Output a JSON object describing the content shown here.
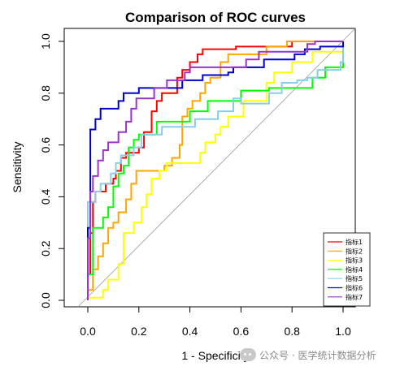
{
  "chart_data": {
    "type": "line",
    "title": "Comparison of ROC curves",
    "xlabel": "1 - Specificity",
    "ylabel": "Sensitivity",
    "xlim": [
      0,
      1
    ],
    "ylim": [
      0,
      1
    ],
    "xticks": [
      "0.0",
      "0.2",
      "0.4",
      "0.6",
      "0.8",
      "1.0"
    ],
    "yticks": [
      "0.0",
      "0.2",
      "0.4",
      "0.6",
      "0.8",
      "1.0"
    ],
    "grid": false,
    "diagonal_reference": true,
    "legend_position": "bottom-right",
    "series": [
      {
        "name": "指标1",
        "color": "#ff0000",
        "points": [
          [
            0,
            0
          ],
          [
            0,
            0.1
          ],
          [
            0.01,
            0.1
          ],
          [
            0.01,
            0.26
          ],
          [
            0.02,
            0.26
          ],
          [
            0.02,
            0.38
          ],
          [
            0.03,
            0.38
          ],
          [
            0.03,
            0.42
          ],
          [
            0.07,
            0.42
          ],
          [
            0.07,
            0.45
          ],
          [
            0.1,
            0.45
          ],
          [
            0.1,
            0.47
          ],
          [
            0.11,
            0.47
          ],
          [
            0.11,
            0.5
          ],
          [
            0.13,
            0.5
          ],
          [
            0.13,
            0.55
          ],
          [
            0.15,
            0.55
          ],
          [
            0.15,
            0.57
          ],
          [
            0.2,
            0.57
          ],
          [
            0.2,
            0.59
          ],
          [
            0.22,
            0.59
          ],
          [
            0.22,
            0.65
          ],
          [
            0.25,
            0.65
          ],
          [
            0.25,
            0.73
          ],
          [
            0.27,
            0.73
          ],
          [
            0.27,
            0.77
          ],
          [
            0.29,
            0.77
          ],
          [
            0.29,
            0.8
          ],
          [
            0.35,
            0.8
          ],
          [
            0.35,
            0.86
          ],
          [
            0.37,
            0.86
          ],
          [
            0.37,
            0.89
          ],
          [
            0.4,
            0.89
          ],
          [
            0.4,
            0.92
          ],
          [
            0.43,
            0.92
          ],
          [
            0.43,
            0.95
          ],
          [
            0.45,
            0.95
          ],
          [
            0.45,
            0.97
          ],
          [
            0.58,
            0.97
          ],
          [
            0.58,
            0.98
          ],
          [
            0.8,
            0.98
          ],
          [
            0.8,
            1
          ],
          [
            1,
            1
          ]
        ]
      },
      {
        "name": "指标2",
        "color": "#ffa500",
        "points": [
          [
            0,
            0
          ],
          [
            0,
            0.04
          ],
          [
            0.02,
            0.04
          ],
          [
            0.02,
            0.12
          ],
          [
            0.04,
            0.12
          ],
          [
            0.04,
            0.17
          ],
          [
            0.06,
            0.17
          ],
          [
            0.06,
            0.22
          ],
          [
            0.08,
            0.22
          ],
          [
            0.08,
            0.28
          ],
          [
            0.1,
            0.28
          ],
          [
            0.1,
            0.3
          ],
          [
            0.12,
            0.3
          ],
          [
            0.12,
            0.34
          ],
          [
            0.15,
            0.34
          ],
          [
            0.15,
            0.39
          ],
          [
            0.17,
            0.39
          ],
          [
            0.17,
            0.45
          ],
          [
            0.19,
            0.45
          ],
          [
            0.19,
            0.5
          ],
          [
            0.3,
            0.5
          ],
          [
            0.3,
            0.52
          ],
          [
            0.33,
            0.52
          ],
          [
            0.33,
            0.55
          ],
          [
            0.36,
            0.55
          ],
          [
            0.36,
            0.6
          ],
          [
            0.37,
            0.6
          ],
          [
            0.37,
            0.71
          ],
          [
            0.39,
            0.71
          ],
          [
            0.39,
            0.74
          ],
          [
            0.41,
            0.74
          ],
          [
            0.41,
            0.77
          ],
          [
            0.44,
            0.77
          ],
          [
            0.44,
            0.8
          ],
          [
            0.46,
            0.8
          ],
          [
            0.46,
            0.84
          ],
          [
            0.48,
            0.84
          ],
          [
            0.48,
            0.86
          ],
          [
            0.52,
            0.86
          ],
          [
            0.52,
            0.92
          ],
          [
            0.55,
            0.92
          ],
          [
            0.55,
            0.95
          ],
          [
            0.7,
            0.95
          ],
          [
            0.7,
            0.98
          ],
          [
            0.78,
            0.98
          ],
          [
            0.78,
            1
          ],
          [
            1,
            1
          ]
        ]
      },
      {
        "name": "指标3",
        "color": "#ffff00",
        "points": [
          [
            0,
            0
          ],
          [
            0,
            0.01
          ],
          [
            0.06,
            0.01
          ],
          [
            0.06,
            0.04
          ],
          [
            0.08,
            0.04
          ],
          [
            0.08,
            0.08
          ],
          [
            0.12,
            0.08
          ],
          [
            0.12,
            0.14
          ],
          [
            0.14,
            0.14
          ],
          [
            0.14,
            0.26
          ],
          [
            0.18,
            0.26
          ],
          [
            0.18,
            0.3
          ],
          [
            0.21,
            0.3
          ],
          [
            0.21,
            0.36
          ],
          [
            0.23,
            0.36
          ],
          [
            0.23,
            0.41
          ],
          [
            0.25,
            0.41
          ],
          [
            0.25,
            0.47
          ],
          [
            0.28,
            0.47
          ],
          [
            0.28,
            0.5
          ],
          [
            0.31,
            0.5
          ],
          [
            0.31,
            0.53
          ],
          [
            0.44,
            0.53
          ],
          [
            0.44,
            0.57
          ],
          [
            0.46,
            0.57
          ],
          [
            0.46,
            0.61
          ],
          [
            0.5,
            0.61
          ],
          [
            0.5,
            0.64
          ],
          [
            0.52,
            0.64
          ],
          [
            0.52,
            0.67
          ],
          [
            0.55,
            0.67
          ],
          [
            0.55,
            0.71
          ],
          [
            0.61,
            0.71
          ],
          [
            0.61,
            0.77
          ],
          [
            0.7,
            0.77
          ],
          [
            0.7,
            0.84
          ],
          [
            0.73,
            0.84
          ],
          [
            0.73,
            0.88
          ],
          [
            0.8,
            0.88
          ],
          [
            0.8,
            0.92
          ],
          [
            0.88,
            0.92
          ],
          [
            0.88,
            0.96
          ],
          [
            1,
            0.96
          ],
          [
            1,
            1
          ]
        ]
      },
      {
        "name": "指标4",
        "color": "#00ff00",
        "points": [
          [
            0,
            0
          ],
          [
            0,
            0.1
          ],
          [
            0.02,
            0.1
          ],
          [
            0.02,
            0.28
          ],
          [
            0.06,
            0.28
          ],
          [
            0.06,
            0.32
          ],
          [
            0.08,
            0.32
          ],
          [
            0.08,
            0.36
          ],
          [
            0.1,
            0.36
          ],
          [
            0.1,
            0.44
          ],
          [
            0.12,
            0.44
          ],
          [
            0.12,
            0.49
          ],
          [
            0.14,
            0.49
          ],
          [
            0.14,
            0.52
          ],
          [
            0.16,
            0.52
          ],
          [
            0.16,
            0.59
          ],
          [
            0.18,
            0.59
          ],
          [
            0.18,
            0.62
          ],
          [
            0.2,
            0.62
          ],
          [
            0.2,
            0.64
          ],
          [
            0.27,
            0.64
          ],
          [
            0.27,
            0.69
          ],
          [
            0.4,
            0.69
          ],
          [
            0.4,
            0.73
          ],
          [
            0.47,
            0.73
          ],
          [
            0.47,
            0.77
          ],
          [
            0.6,
            0.77
          ],
          [
            0.6,
            0.81
          ],
          [
            0.71,
            0.81
          ],
          [
            0.71,
            0.82
          ],
          [
            0.88,
            0.82
          ],
          [
            0.88,
            0.86
          ],
          [
            0.93,
            0.86
          ],
          [
            0.93,
            0.9
          ],
          [
            1,
            0.9
          ],
          [
            1,
            1
          ]
        ]
      },
      {
        "name": "指标5",
        "color": "#87ceeb",
        "points": [
          [
            0,
            0
          ],
          [
            0,
            0.38
          ],
          [
            0.03,
            0.38
          ],
          [
            0.03,
            0.42
          ],
          [
            0.05,
            0.42
          ],
          [
            0.05,
            0.45
          ],
          [
            0.09,
            0.45
          ],
          [
            0.09,
            0.49
          ],
          [
            0.11,
            0.49
          ],
          [
            0.11,
            0.53
          ],
          [
            0.13,
            0.53
          ],
          [
            0.13,
            0.56
          ],
          [
            0.18,
            0.56
          ],
          [
            0.18,
            0.59
          ],
          [
            0.21,
            0.59
          ],
          [
            0.21,
            0.64
          ],
          [
            0.29,
            0.64
          ],
          [
            0.29,
            0.67
          ],
          [
            0.42,
            0.67
          ],
          [
            0.42,
            0.7
          ],
          [
            0.51,
            0.7
          ],
          [
            0.51,
            0.73
          ],
          [
            0.57,
            0.73
          ],
          [
            0.57,
            0.78
          ],
          [
            0.6,
            0.78
          ],
          [
            0.6,
            0.76
          ],
          [
            0.71,
            0.76
          ],
          [
            0.71,
            0.8
          ],
          [
            0.76,
            0.8
          ],
          [
            0.76,
            0.84
          ],
          [
            0.82,
            0.84
          ],
          [
            0.82,
            0.85
          ],
          [
            0.86,
            0.85
          ],
          [
            0.86,
            0.86
          ],
          [
            0.9,
            0.86
          ],
          [
            0.9,
            0.89
          ],
          [
            0.99,
            0.89
          ],
          [
            0.99,
            0.92
          ],
          [
            1,
            0.92
          ],
          [
            1,
            1
          ]
        ]
      },
      {
        "name": "指标6",
        "color": "#0000cd",
        "points": [
          [
            0,
            0
          ],
          [
            0,
            0.28
          ],
          [
            0.01,
            0.28
          ],
          [
            0.01,
            0.66
          ],
          [
            0.03,
            0.66
          ],
          [
            0.03,
            0.7
          ],
          [
            0.05,
            0.7
          ],
          [
            0.05,
            0.74
          ],
          [
            0.12,
            0.74
          ],
          [
            0.12,
            0.77
          ],
          [
            0.14,
            0.77
          ],
          [
            0.14,
            0.8
          ],
          [
            0.2,
            0.8
          ],
          [
            0.2,
            0.82
          ],
          [
            0.37,
            0.82
          ],
          [
            0.37,
            0.85
          ],
          [
            0.45,
            0.85
          ],
          [
            0.45,
            0.87
          ],
          [
            0.55,
            0.87
          ],
          [
            0.55,
            0.88
          ],
          [
            0.57,
            0.88
          ],
          [
            0.57,
            0.9
          ],
          [
            0.69,
            0.9
          ],
          [
            0.69,
            0.93
          ],
          [
            0.81,
            0.93
          ],
          [
            0.81,
            0.95
          ],
          [
            0.85,
            0.95
          ],
          [
            0.85,
            0.97
          ],
          [
            0.91,
            0.97
          ],
          [
            0.91,
            0.98
          ],
          [
            1,
            0.98
          ],
          [
            1,
            1
          ]
        ]
      },
      {
        "name": "指标7",
        "color": "#9933cc",
        "points": [
          [
            0,
            0
          ],
          [
            0,
            0.24
          ],
          [
            0.01,
            0.24
          ],
          [
            0.01,
            0.42
          ],
          [
            0.02,
            0.42
          ],
          [
            0.02,
            0.48
          ],
          [
            0.04,
            0.48
          ],
          [
            0.04,
            0.54
          ],
          [
            0.06,
            0.54
          ],
          [
            0.06,
            0.58
          ],
          [
            0.08,
            0.58
          ],
          [
            0.08,
            0.61
          ],
          [
            0.12,
            0.61
          ],
          [
            0.12,
            0.65
          ],
          [
            0.15,
            0.65
          ],
          [
            0.15,
            0.69
          ],
          [
            0.17,
            0.69
          ],
          [
            0.17,
            0.74
          ],
          [
            0.19,
            0.74
          ],
          [
            0.19,
            0.78
          ],
          [
            0.26,
            0.78
          ],
          [
            0.26,
            0.82
          ],
          [
            0.31,
            0.82
          ],
          [
            0.31,
            0.85
          ],
          [
            0.38,
            0.85
          ],
          [
            0.38,
            0.88
          ],
          [
            0.4,
            0.88
          ],
          [
            0.4,
            0.9
          ],
          [
            0.62,
            0.9
          ],
          [
            0.62,
            0.93
          ],
          [
            0.67,
            0.93
          ],
          [
            0.67,
            0.96
          ],
          [
            0.86,
            0.96
          ],
          [
            0.86,
            0.99
          ],
          [
            0.89,
            0.99
          ],
          [
            0.89,
            1
          ],
          [
            1,
            1
          ]
        ]
      }
    ]
  },
  "watermark": {
    "text": "公众号 · 医学统计数据分析"
  }
}
